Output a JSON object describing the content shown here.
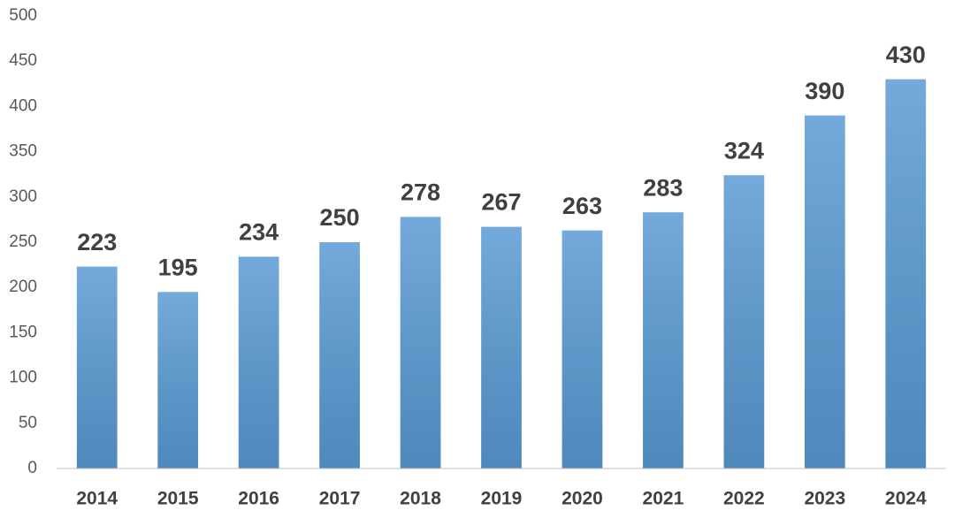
{
  "chart_data": {
    "type": "bar",
    "categories": [
      "2014",
      "2015",
      "2016",
      "2017",
      "2018",
      "2019",
      "2020",
      "2021",
      "2022",
      "2023",
      "2024"
    ],
    "values": [
      223,
      195,
      234,
      250,
      278,
      267,
      263,
      283,
      324,
      390,
      430
    ],
    "color": "#5b9bd5",
    "ylim": [
      0,
      500
    ],
    "yticks": [
      0,
      50,
      100,
      150,
      200,
      250,
      300,
      350,
      400,
      450,
      500
    ],
    "grid": false,
    "data_labels": true
  }
}
